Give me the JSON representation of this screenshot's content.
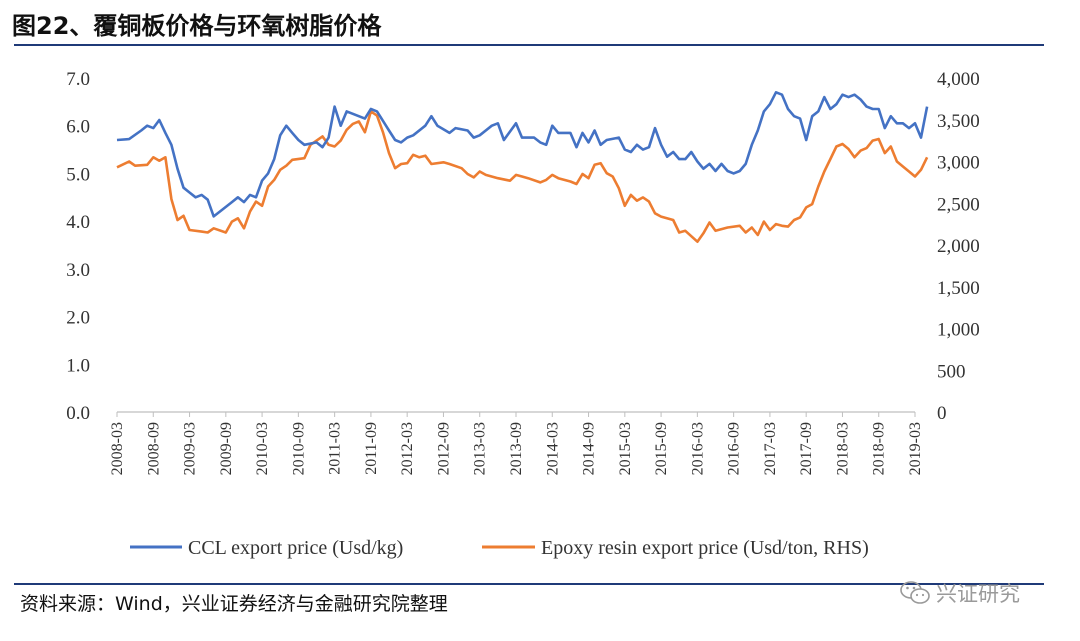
{
  "title": "图22、覆铜板价格与环氧树脂价格",
  "source": "资料来源：Wind，兴业证券经济与金融研究院整理",
  "watermark": "兴证研究",
  "watermark_icon": "wechat-icon",
  "colors": {
    "ccl": "#4472C4",
    "epoxy": "#ED7D31",
    "rule": "#1f3a78"
  },
  "chart_data": {
    "type": "line",
    "title": "图22、覆铜板价格与环氧树脂价格",
    "xlabel": "",
    "ylabel": "",
    "grid": false,
    "legend_position": "bottom",
    "x_start": "2008-03",
    "x_end": "2019-03",
    "x_ticks": [
      "2008-03",
      "2008-09",
      "2009-03",
      "2009-09",
      "2010-03",
      "2010-09",
      "2011-03",
      "2011-09",
      "2012-03",
      "2012-09",
      "2013-03",
      "2013-09",
      "2014-03",
      "2014-09",
      "2015-03",
      "2015-09",
      "2016-03",
      "2016-09",
      "2017-03",
      "2017-09",
      "2018-03",
      "2018-09",
      "2019-03"
    ],
    "y_left": {
      "min": 0,
      "max": 7,
      "ticks": [
        "0.0",
        "1.0",
        "2.0",
        "3.0",
        "4.0",
        "5.0",
        "6.0",
        "7.0"
      ]
    },
    "y_right": {
      "min": 0,
      "max": 4000,
      "ticks": [
        "0",
        "500",
        "1,000",
        "1,500",
        "2,000",
        "2,500",
        "3,000",
        "3,500",
        "4,000"
      ]
    },
    "series": [
      {
        "name": "CCL export price (Usd/kg)",
        "axis": "left",
        "points": [
          [
            "2008-03",
            5.7
          ],
          [
            "2008-05",
            5.72
          ],
          [
            "2008-07",
            5.9
          ],
          [
            "2008-08",
            6.0
          ],
          [
            "2008-09",
            5.95
          ],
          [
            "2008-10",
            6.12
          ],
          [
            "2008-11",
            5.85
          ],
          [
            "2008-12",
            5.6
          ],
          [
            "2009-01",
            5.1
          ],
          [
            "2009-02",
            4.7
          ],
          [
            "2009-03",
            4.6
          ],
          [
            "2009-04",
            4.5
          ],
          [
            "2009-05",
            4.55
          ],
          [
            "2009-06",
            4.45
          ],
          [
            "2009-07",
            4.1
          ],
          [
            "2009-08",
            4.2
          ],
          [
            "2009-10",
            4.4
          ],
          [
            "2009-11",
            4.5
          ],
          [
            "2009-12",
            4.4
          ],
          [
            "2010-01",
            4.55
          ],
          [
            "2010-02",
            4.5
          ],
          [
            "2010-03",
            4.85
          ],
          [
            "2010-04",
            5.0
          ],
          [
            "2010-05",
            5.3
          ],
          [
            "2010-06",
            5.8
          ],
          [
            "2010-07",
            6.0
          ],
          [
            "2010-08",
            5.85
          ],
          [
            "2010-09",
            5.7
          ],
          [
            "2010-10",
            5.6
          ],
          [
            "2010-12",
            5.65
          ],
          [
            "2011-01",
            5.55
          ],
          [
            "2011-02",
            5.75
          ],
          [
            "2011-03",
            6.4
          ],
          [
            "2011-04",
            6.0
          ],
          [
            "2011-05",
            6.3
          ],
          [
            "2011-06",
            6.25
          ],
          [
            "2011-08",
            6.15
          ],
          [
            "2011-09",
            6.35
          ],
          [
            "2011-10",
            6.3
          ],
          [
            "2011-11",
            6.1
          ],
          [
            "2011-12",
            5.9
          ],
          [
            "2012-01",
            5.7
          ],
          [
            "2012-02",
            5.65
          ],
          [
            "2012-03",
            5.75
          ],
          [
            "2012-04",
            5.8
          ],
          [
            "2012-06",
            6.0
          ],
          [
            "2012-07",
            6.2
          ],
          [
            "2012-08",
            6.0
          ],
          [
            "2012-10",
            5.85
          ],
          [
            "2012-11",
            5.95
          ],
          [
            "2013-01",
            5.9
          ],
          [
            "2013-02",
            5.75
          ],
          [
            "2013-03",
            5.8
          ],
          [
            "2013-05",
            6.0
          ],
          [
            "2013-06",
            6.05
          ],
          [
            "2013-07",
            5.7
          ],
          [
            "2013-09",
            6.05
          ],
          [
            "2013-10",
            5.75
          ],
          [
            "2013-12",
            5.75
          ],
          [
            "2014-01",
            5.65
          ],
          [
            "2014-02",
            5.6
          ],
          [
            "2014-03",
            6.0
          ],
          [
            "2014-04",
            5.85
          ],
          [
            "2014-06",
            5.85
          ],
          [
            "2014-07",
            5.55
          ],
          [
            "2014-08",
            5.85
          ],
          [
            "2014-09",
            5.65
          ],
          [
            "2014-10",
            5.9
          ],
          [
            "2014-11",
            5.6
          ],
          [
            "2014-12",
            5.7
          ],
          [
            "2015-02",
            5.75
          ],
          [
            "2015-03",
            5.5
          ],
          [
            "2015-04",
            5.45
          ],
          [
            "2015-05",
            5.6
          ],
          [
            "2015-06",
            5.5
          ],
          [
            "2015-07",
            5.55
          ],
          [
            "2015-08",
            5.95
          ],
          [
            "2015-09",
            5.6
          ],
          [
            "2015-10",
            5.35
          ],
          [
            "2015-11",
            5.45
          ],
          [
            "2015-12",
            5.3
          ],
          [
            "2016-01",
            5.3
          ],
          [
            "2016-02",
            5.45
          ],
          [
            "2016-03",
            5.25
          ],
          [
            "2016-04",
            5.1
          ],
          [
            "2016-05",
            5.2
          ],
          [
            "2016-06",
            5.05
          ],
          [
            "2016-07",
            5.2
          ],
          [
            "2016-08",
            5.05
          ],
          [
            "2016-09",
            5.0
          ],
          [
            "2016-10",
            5.05
          ],
          [
            "2016-11",
            5.2
          ],
          [
            "2016-12",
            5.6
          ],
          [
            "2017-01",
            5.9
          ],
          [
            "2017-02",
            6.3
          ],
          [
            "2017-03",
            6.45
          ],
          [
            "2017-04",
            6.7
          ],
          [
            "2017-05",
            6.65
          ],
          [
            "2017-06",
            6.35
          ],
          [
            "2017-07",
            6.2
          ],
          [
            "2017-08",
            6.15
          ],
          [
            "2017-09",
            5.7
          ],
          [
            "2017-10",
            6.2
          ],
          [
            "2017-11",
            6.3
          ],
          [
            "2017-12",
            6.6
          ],
          [
            "2018-01",
            6.35
          ],
          [
            "2018-02",
            6.45
          ],
          [
            "2018-03",
            6.65
          ],
          [
            "2018-04",
            6.6
          ],
          [
            "2018-05",
            6.65
          ],
          [
            "2018-06",
            6.55
          ],
          [
            "2018-07",
            6.4
          ],
          [
            "2018-08",
            6.35
          ],
          [
            "2018-09",
            6.35
          ],
          [
            "2018-10",
            5.95
          ],
          [
            "2018-11",
            6.2
          ],
          [
            "2018-12",
            6.05
          ],
          [
            "2019-01",
            6.05
          ],
          [
            "2019-02",
            5.95
          ],
          [
            "2019-03",
            6.05
          ],
          [
            "2019-04",
            5.75
          ],
          [
            "2019-05",
            6.4
          ]
        ]
      },
      {
        "name": "Epoxy resin export price (Usd/ton, RHS)",
        "axis": "right",
        "points": [
          [
            "2008-03",
            2930
          ],
          [
            "2008-05",
            3000
          ],
          [
            "2008-06",
            2950
          ],
          [
            "2008-08",
            2960
          ],
          [
            "2008-09",
            3050
          ],
          [
            "2008-10",
            3010
          ],
          [
            "2008-11",
            3050
          ],
          [
            "2008-12",
            2550
          ],
          [
            "2009-01",
            2300
          ],
          [
            "2009-02",
            2350
          ],
          [
            "2009-03",
            2180
          ],
          [
            "2009-05",
            2160
          ],
          [
            "2009-06",
            2150
          ],
          [
            "2009-07",
            2200
          ],
          [
            "2009-09",
            2150
          ],
          [
            "2009-10",
            2280
          ],
          [
            "2009-11",
            2320
          ],
          [
            "2009-12",
            2200
          ],
          [
            "2010-01",
            2400
          ],
          [
            "2010-02",
            2520
          ],
          [
            "2010-03",
            2470
          ],
          [
            "2010-04",
            2700
          ],
          [
            "2010-05",
            2780
          ],
          [
            "2010-06",
            2900
          ],
          [
            "2010-07",
            2950
          ],
          [
            "2010-08",
            3020
          ],
          [
            "2010-10",
            3040
          ],
          [
            "2010-11",
            3200
          ],
          [
            "2011-01",
            3300
          ],
          [
            "2011-02",
            3200
          ],
          [
            "2011-03",
            3180
          ],
          [
            "2011-04",
            3250
          ],
          [
            "2011-05",
            3380
          ],
          [
            "2011-06",
            3450
          ],
          [
            "2011-07",
            3480
          ],
          [
            "2011-08",
            3350
          ],
          [
            "2011-09",
            3600
          ],
          [
            "2011-10",
            3550
          ],
          [
            "2011-11",
            3350
          ],
          [
            "2011-12",
            3100
          ],
          [
            "2012-01",
            2920
          ],
          [
            "2012-02",
            2970
          ],
          [
            "2012-03",
            2980
          ],
          [
            "2012-04",
            3080
          ],
          [
            "2012-05",
            3050
          ],
          [
            "2012-06",
            3070
          ],
          [
            "2012-07",
            2970
          ],
          [
            "2012-09",
            2990
          ],
          [
            "2012-10",
            2970
          ],
          [
            "2012-12",
            2920
          ],
          [
            "2013-01",
            2850
          ],
          [
            "2013-02",
            2810
          ],
          [
            "2013-03",
            2880
          ],
          [
            "2013-04",
            2840
          ],
          [
            "2013-06",
            2800
          ],
          [
            "2013-08",
            2770
          ],
          [
            "2013-09",
            2840
          ],
          [
            "2013-10",
            2820
          ],
          [
            "2013-11",
            2800
          ],
          [
            "2014-01",
            2750
          ],
          [
            "2014-02",
            2780
          ],
          [
            "2014-03",
            2840
          ],
          [
            "2014-04",
            2800
          ],
          [
            "2014-06",
            2760
          ],
          [
            "2014-07",
            2730
          ],
          [
            "2014-08",
            2850
          ],
          [
            "2014-09",
            2800
          ],
          [
            "2014-10",
            2960
          ],
          [
            "2014-11",
            2980
          ],
          [
            "2014-12",
            2860
          ],
          [
            "2015-01",
            2820
          ],
          [
            "2015-02",
            2680
          ],
          [
            "2015-03",
            2470
          ],
          [
            "2015-04",
            2600
          ],
          [
            "2015-05",
            2530
          ],
          [
            "2015-06",
            2570
          ],
          [
            "2015-07",
            2520
          ],
          [
            "2015-08",
            2380
          ],
          [
            "2015-09",
            2340
          ],
          [
            "2015-11",
            2300
          ],
          [
            "2015-12",
            2150
          ],
          [
            "2016-01",
            2170
          ],
          [
            "2016-03",
            2040
          ],
          [
            "2016-04",
            2140
          ],
          [
            "2016-05",
            2270
          ],
          [
            "2016-06",
            2170
          ],
          [
            "2016-08",
            2210
          ],
          [
            "2016-10",
            2230
          ],
          [
            "2016-11",
            2150
          ],
          [
            "2016-12",
            2210
          ],
          [
            "2017-01",
            2120
          ],
          [
            "2017-02",
            2280
          ],
          [
            "2017-03",
            2180
          ],
          [
            "2017-04",
            2250
          ],
          [
            "2017-05",
            2230
          ],
          [
            "2017-06",
            2220
          ],
          [
            "2017-07",
            2300
          ],
          [
            "2017-08",
            2330
          ],
          [
            "2017-09",
            2450
          ],
          [
            "2017-10",
            2490
          ],
          [
            "2017-11",
            2700
          ],
          [
            "2017-12",
            2880
          ],
          [
            "2018-01",
            3030
          ],
          [
            "2018-02",
            3180
          ],
          [
            "2018-03",
            3210
          ],
          [
            "2018-04",
            3150
          ],
          [
            "2018-05",
            3050
          ],
          [
            "2018-06",
            3130
          ],
          [
            "2018-07",
            3160
          ],
          [
            "2018-08",
            3250
          ],
          [
            "2018-09",
            3270
          ],
          [
            "2018-10",
            3100
          ],
          [
            "2018-11",
            3180
          ],
          [
            "2018-12",
            3000
          ],
          [
            "2019-01",
            2940
          ],
          [
            "2019-02",
            2880
          ],
          [
            "2019-03",
            2820
          ],
          [
            "2019-04",
            2900
          ],
          [
            "2019-05",
            3050
          ]
        ]
      }
    ]
  }
}
